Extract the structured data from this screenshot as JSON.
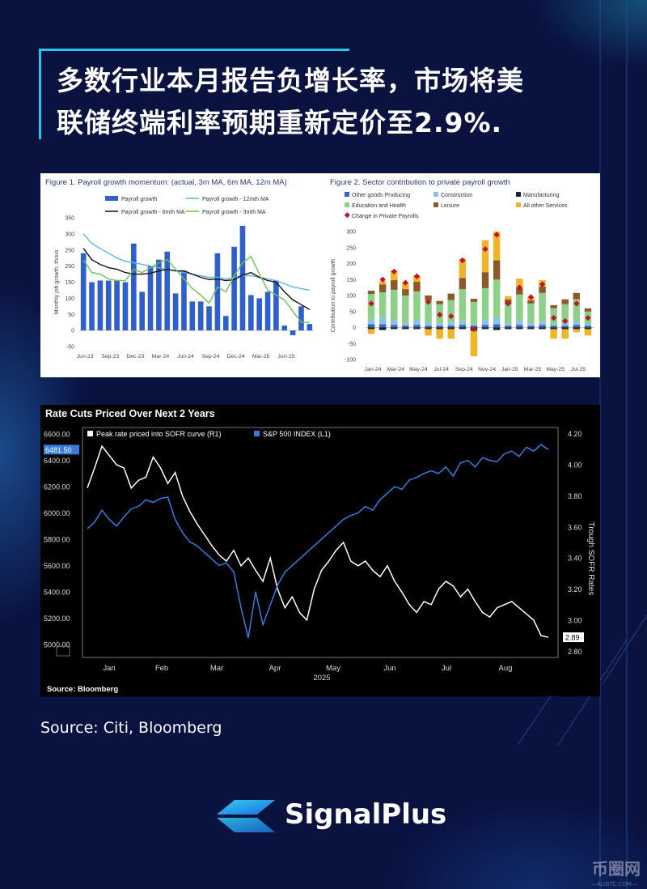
{
  "headline": {
    "line1": "多数行业本月报告负增长率，市场将美",
    "line2": "联储终端利率预期重新定价至2.9%."
  },
  "source": "Source: Citi, Bloomberg",
  "brand": {
    "name": "SignalPlus",
    "accent": "#26c8e6"
  },
  "watermark": {
    "text": "币圈网",
    "sub": "—ALIBTC.COM—"
  },
  "chart_data": [
    {
      "type": "bar",
      "title": "Figure 1. Payroll growth momentum: (actual, 3m MA, 6m MA, 12m MA)",
      "ylabel": "Monthly job growth, thous",
      "ylim": [
        -50,
        350
      ],
      "yticks": [
        -50,
        0,
        50,
        100,
        150,
        200,
        250,
        300,
        350
      ],
      "xticks": [
        "Jun-23",
        "Sep-23",
        "Dec-23",
        "Mar-24",
        "Jun-24",
        "Sep-24",
        "Dec-24",
        "Mar-25",
        "Jun-25"
      ],
      "legend": [
        "Payroll growth",
        "Payroll growth - 12mth MA",
        "Payroll growth - 6mth MA",
        "Payroll growth - 3mth MA"
      ],
      "colors": {
        "bars": "#2f5fc8",
        "ma12": "#5fb6e2",
        "ma6": "#111111",
        "ma3": "#6cc15a"
      },
      "bars": [
        240,
        150,
        155,
        155,
        155,
        150,
        270,
        120,
        200,
        220,
        245,
        115,
        185,
        90,
        90,
        75,
        240,
        45,
        260,
        325,
        110,
        100,
        120,
        155,
        15,
        -15,
        75,
        20
      ],
      "ma12": [
        300,
        270,
        255,
        240,
        225,
        215,
        210,
        205,
        200,
        195,
        190,
        185,
        180,
        175,
        170,
        165,
        165,
        160,
        165,
        170,
        170,
        165,
        160,
        155,
        145,
        135,
        130,
        125
      ],
      "ma6": [
        255,
        220,
        205,
        195,
        190,
        180,
        175,
        175,
        178,
        185,
        190,
        185,
        185,
        175,
        165,
        158,
        160,
        155,
        158,
        172,
        180,
        165,
        155,
        150,
        120,
        95,
        80,
        65
      ],
      "ma3": [
        220,
        180,
        175,
        160,
        155,
        155,
        190,
        180,
        195,
        210,
        220,
        190,
        160,
        130,
        110,
        85,
        135,
        120,
        170,
        210,
        230,
        175,
        125,
        110,
        95,
        60,
        25,
        25
      ]
    },
    {
      "type": "bar",
      "title": "Figure 2. Sector contribution to private payroll growth",
      "ylabel": "Contribution to payroll growth",
      "ylim": [
        -100,
        300
      ],
      "yticks": [
        -100,
        -50,
        0,
        50,
        100,
        150,
        200,
        250,
        300
      ],
      "xticks": [
        "Jan-24",
        "Mar-24",
        "May-24",
        "Jul-24",
        "Sep-24",
        "Nov-24",
        "Jan-25",
        "Mar-25",
        "May-25",
        "Jul-25"
      ],
      "legend": [
        "Other goods Producing",
        "Construction",
        "Manufacturing",
        "Education and Health",
        "Leisure",
        "All other Services",
        "Change in  Private Payrolls"
      ],
      "colors": {
        "other_goods": "#3565c4",
        "construction": "#8fc1e8",
        "manufacturing": "#222222",
        "edu_health": "#8ed08a",
        "leisure": "#8b5a2b",
        "other_services": "#f0b429",
        "change": "#c0142a"
      },
      "stacks": [
        [
          10,
          15,
          -5,
          80,
          10,
          -15,
          75
        ],
        [
          10,
          20,
          -8,
          80,
          25,
          10,
          150
        ],
        [
          8,
          15,
          -5,
          95,
          30,
          30,
          175
        ],
        [
          5,
          10,
          -5,
          85,
          20,
          20,
          140
        ],
        [
          8,
          15,
          -5,
          90,
          30,
          20,
          160
        ],
        [
          5,
          10,
          -5,
          70,
          15,
          -20,
          80
        ],
        [
          5,
          8,
          -5,
          60,
          10,
          -30,
          40
        ],
        [
          6,
          10,
          -5,
          70,
          20,
          -30,
          35
        ],
        [
          8,
          12,
          -5,
          100,
          35,
          60,
          210
        ],
        [
          5,
          5,
          -10,
          70,
          10,
          -80,
          -5
        ],
        [
          8,
          15,
          -5,
          100,
          50,
          100,
          245
        ],
        [
          10,
          20,
          -8,
          120,
          60,
          90,
          290
        ],
        [
          5,
          8,
          -5,
          60,
          15,
          10,
          75
        ],
        [
          8,
          15,
          -5,
          80,
          20,
          30,
          125
        ],
        [
          5,
          10,
          -5,
          60,
          10,
          10,
          95
        ],
        [
          8,
          10,
          -5,
          90,
          20,
          20,
          135
        ],
        [
          5,
          5,
          -5,
          50,
          10,
          -30,
          30
        ],
        [
          5,
          8,
          -5,
          60,
          15,
          -30,
          20
        ],
        [
          8,
          10,
          -5,
          70,
          20,
          -10,
          75
        ],
        [
          5,
          5,
          -5,
          40,
          10,
          -20,
          30
        ]
      ]
    },
    {
      "type": "line",
      "title": "Rate Cuts Priced Over Next 2 Years",
      "source": "Source: Bloomberg",
      "year": "2025",
      "xticks": [
        "Jan",
        "Feb",
        "Mar",
        "Apr",
        "May",
        "Jun",
        "Jul",
        "Aug"
      ],
      "left_axis": {
        "ticks": [
          "6600.00",
          "6400.00",
          "6200.00",
          "6000.00",
          "5800.00",
          "5600.00",
          "5400.00",
          "5200.00",
          "5000.00"
        ],
        "last": "6481.50"
      },
      "right_axis": {
        "title": "Trough SOFR Rates",
        "ticks": [
          "4.20",
          "4.00",
          "3.80",
          "3.60",
          "3.40",
          "3.20",
          "3.00",
          "2.80"
        ],
        "last": "2.89"
      },
      "ylim_left": [
        4900,
        6650
      ],
      "ylim_right": [
        2.76,
        4.24
      ],
      "series": [
        {
          "name": "Peak rate priced into SOFR curve (R1)",
          "axis": "right",
          "color": "#ffffff",
          "values": [
            3.85,
            3.98,
            4.12,
            4.06,
            4.0,
            3.98,
            3.85,
            3.9,
            3.92,
            4.05,
            3.98,
            3.88,
            3.95,
            3.8,
            3.7,
            3.62,
            3.55,
            3.48,
            3.42,
            3.38,
            3.45,
            3.35,
            3.4,
            3.32,
            3.25,
            3.4,
            3.2,
            3.08,
            3.15,
            3.05,
            3.0,
            3.2,
            3.32,
            3.38,
            3.45,
            3.5,
            3.38,
            3.35,
            3.38,
            3.32,
            3.28,
            3.35,
            3.25,
            3.18,
            3.1,
            3.05,
            3.12,
            3.1,
            3.2,
            3.25,
            3.22,
            3.15,
            3.2,
            3.12,
            3.05,
            3.02,
            3.08,
            3.1,
            3.12,
            3.08,
            3.04,
            3.0,
            2.9,
            2.89
          ]
        },
        {
          "name": "S&P 500 INDEX (L1)",
          "axis": "left",
          "color": "#3a7be0",
          "values": [
            5880,
            5930,
            6020,
            5950,
            5900,
            5970,
            6030,
            6050,
            6100,
            6080,
            6110,
            6120,
            5950,
            5850,
            5780,
            5750,
            5700,
            5650,
            5600,
            5620,
            5550,
            5280,
            5050,
            5400,
            5150,
            5300,
            5450,
            5550,
            5600,
            5650,
            5700,
            5750,
            5800,
            5850,
            5900,
            5950,
            5980,
            6000,
            6050,
            6020,
            6100,
            6150,
            6200,
            6180,
            6250,
            6270,
            6300,
            6320,
            6300,
            6350,
            6280,
            6380,
            6400,
            6350,
            6420,
            6400,
            6390,
            6450,
            6470,
            6430,
            6500,
            6470,
            6520,
            6481.5
          ]
        }
      ]
    }
  ]
}
